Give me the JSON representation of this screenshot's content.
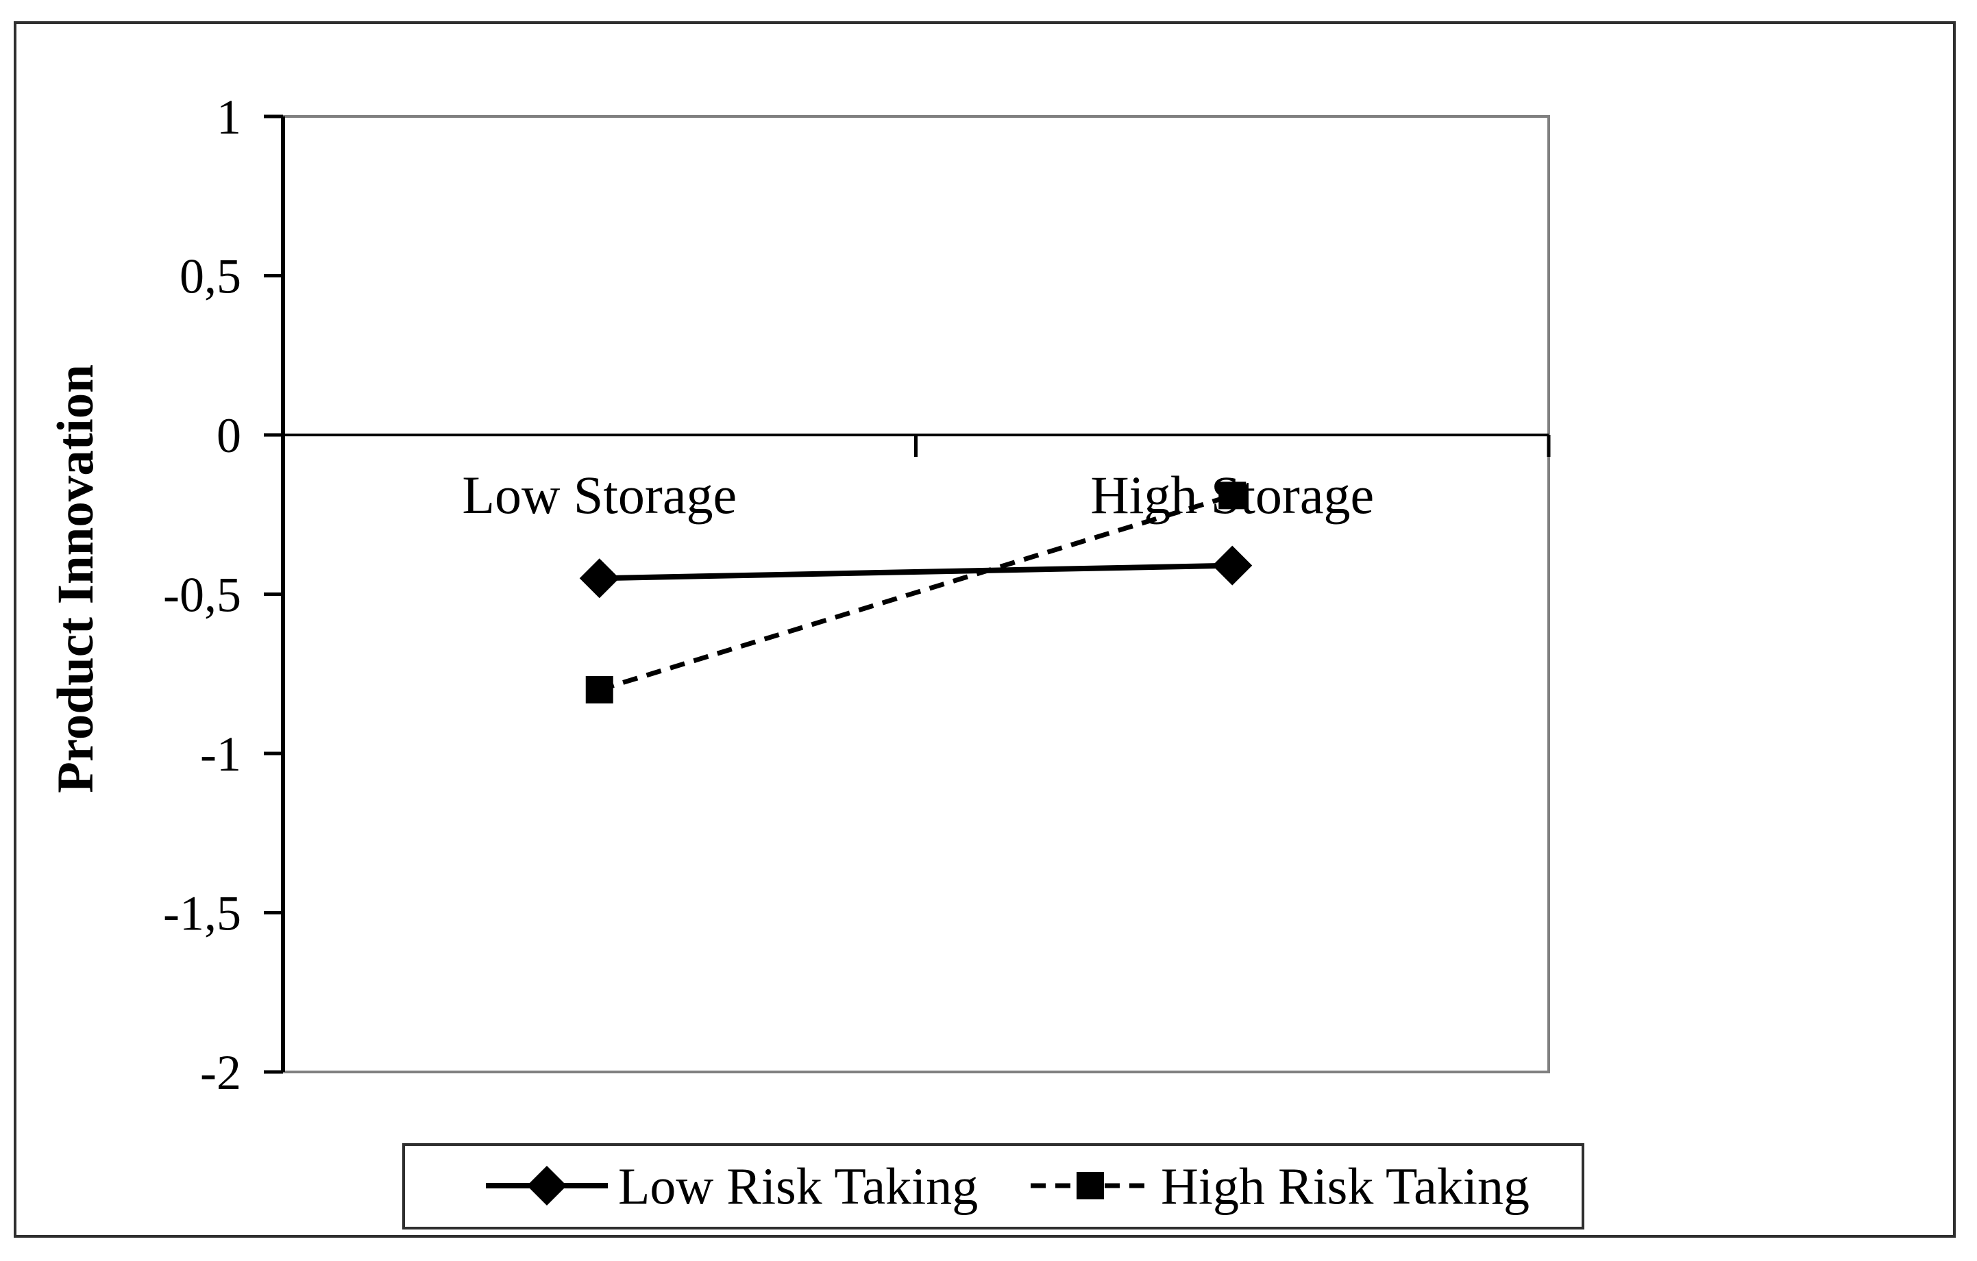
{
  "figure": {
    "background_color": "#ffffff",
    "outer_border_color": "#2f2f2f",
    "plot_border_color": "#808080",
    "axis_color": "#000000",
    "series_color": "#000000"
  },
  "chart_data": {
    "type": "line",
    "title": "",
    "categories": [
      "Low Storage",
      "High Storage"
    ],
    "series": [
      {
        "name": "Low Risk Taking",
        "values": [
          -0.45,
          -0.41
        ],
        "marker": "diamond",
        "line_style": "solid",
        "color": "#000000"
      },
      {
        "name": "High Risk Taking",
        "values": [
          -0.8,
          -0.19
        ],
        "marker": "square",
        "line_style": "dashed",
        "color": "#000000"
      }
    ],
    "xlabel": "",
    "ylabel": "Product Innovation",
    "ylim": [
      -2,
      1
    ],
    "ytick_step": 0.5,
    "ytick_labels": [
      "1",
      "0,5",
      "0",
      "-0,5",
      "-1",
      "-1,5",
      "-2"
    ],
    "decimal_separator": ",",
    "grid": false,
    "axis_crosses_at": 0,
    "legend_position": "bottom"
  }
}
